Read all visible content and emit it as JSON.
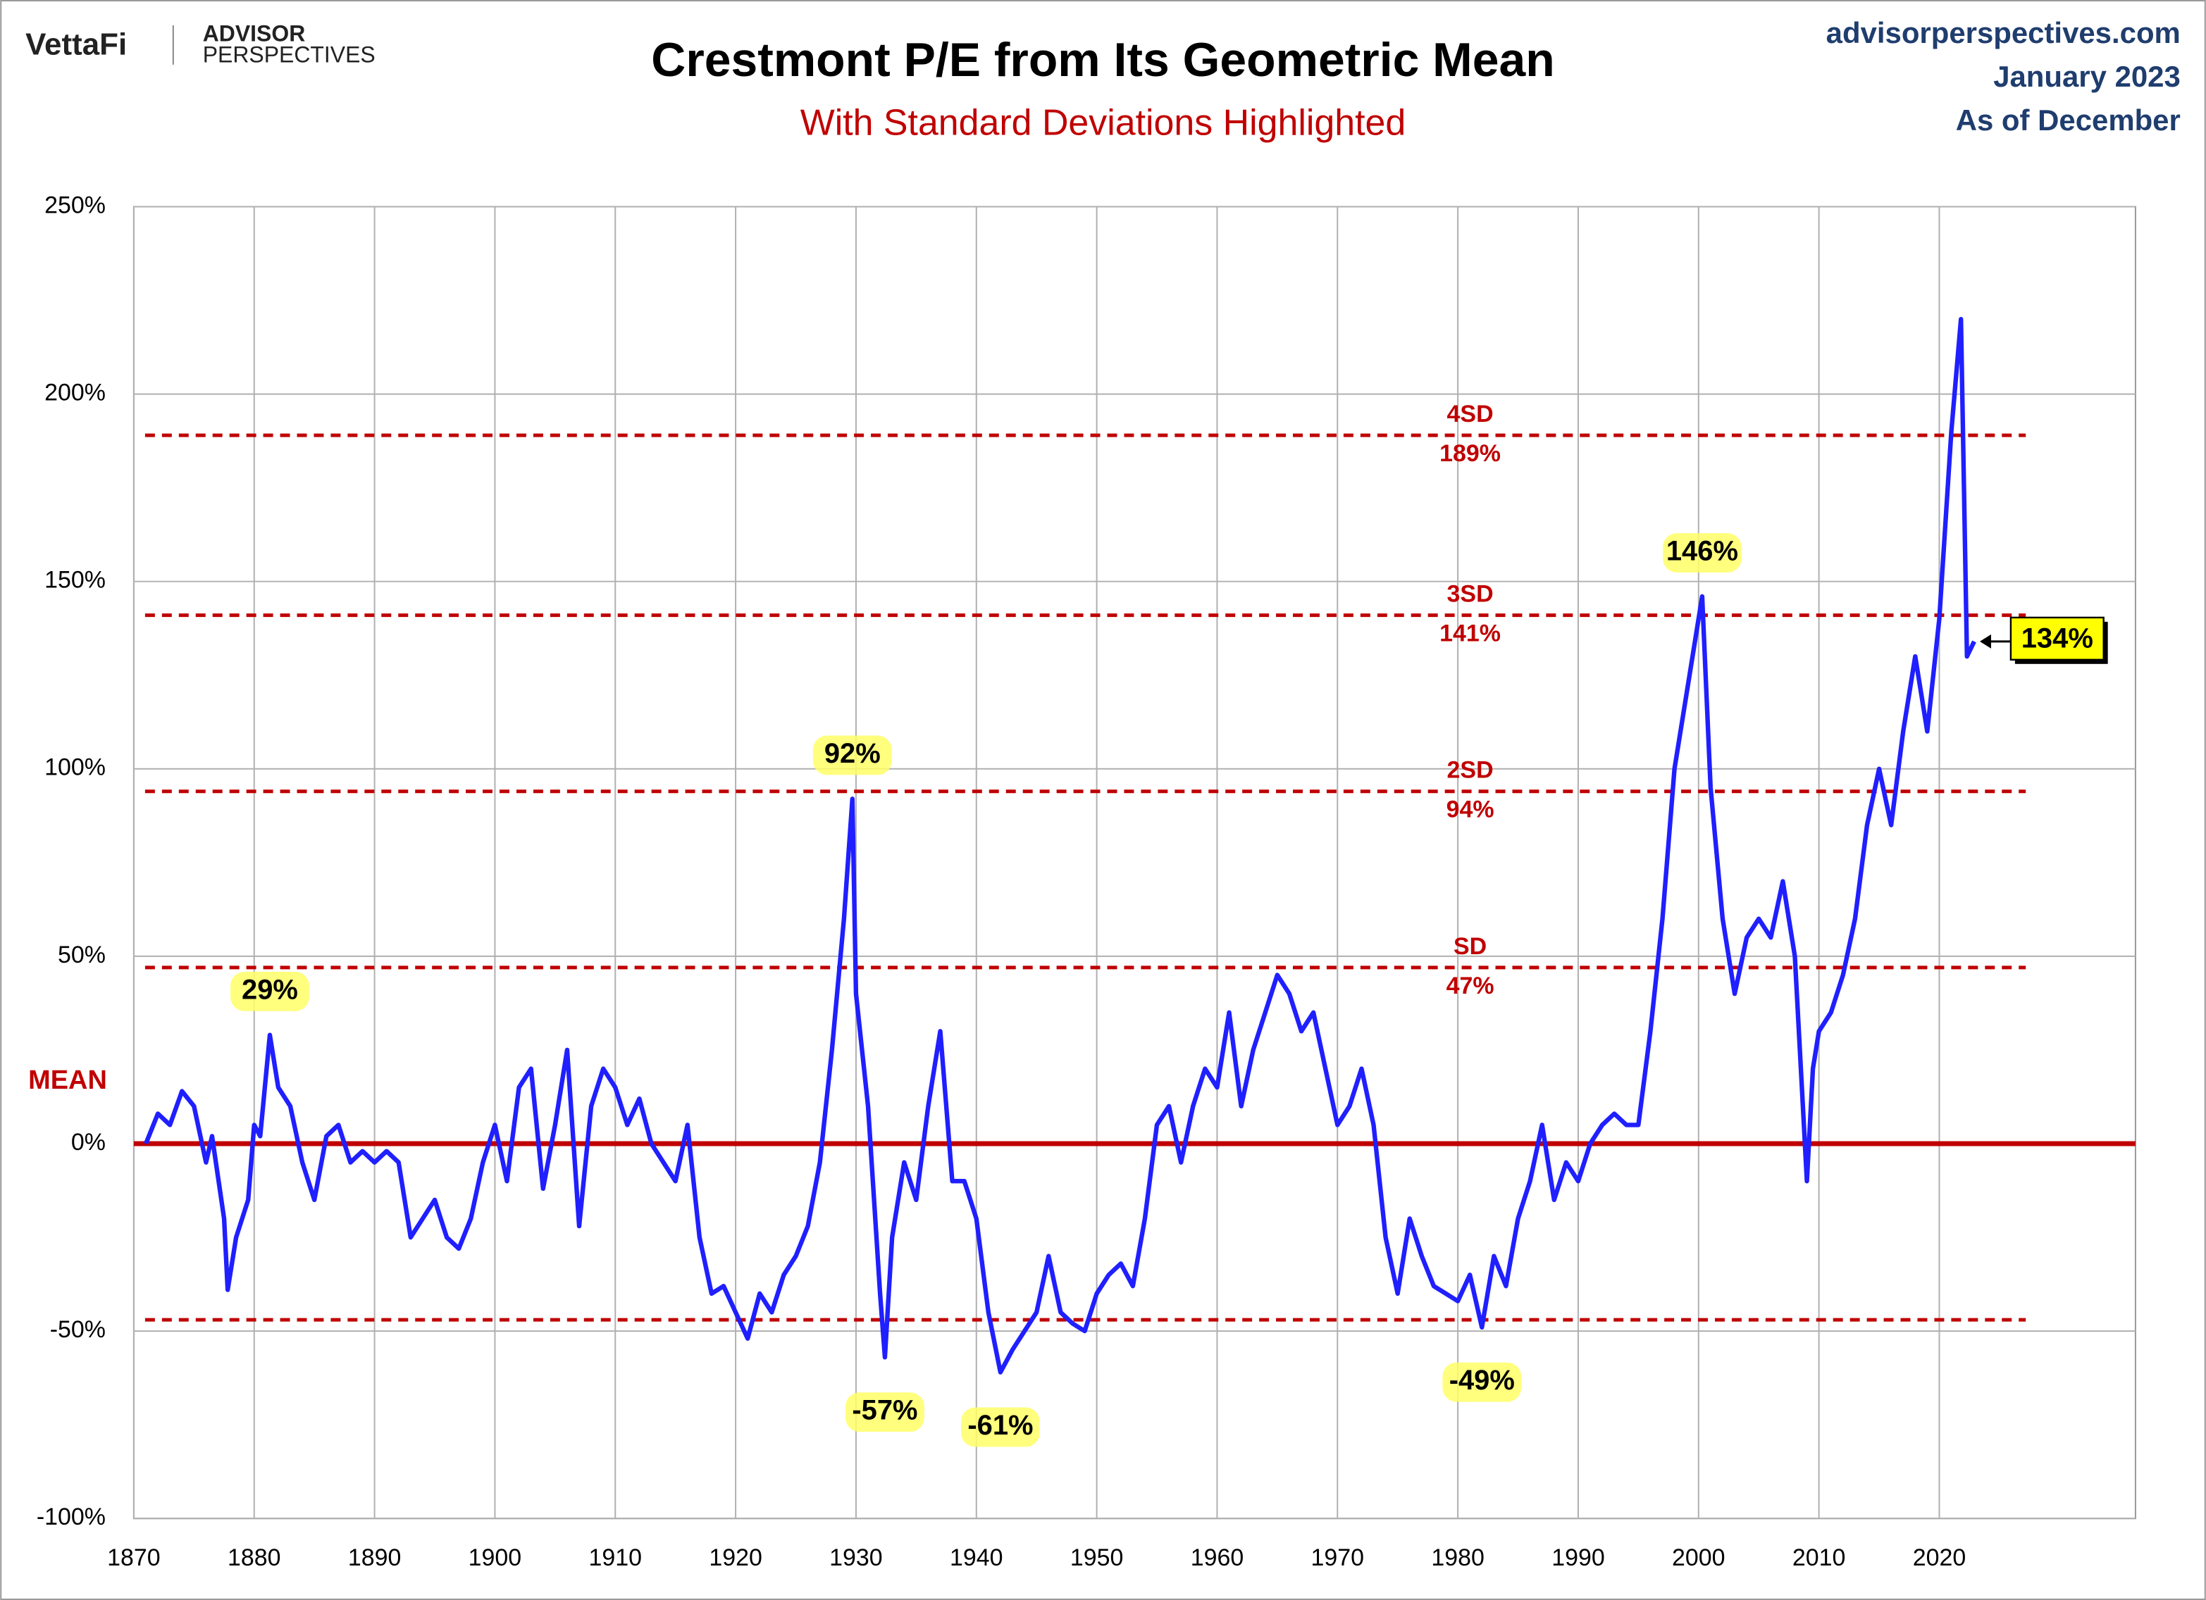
{
  "header": {
    "logo": "VettaFi",
    "brand_top": "ADVISOR",
    "brand_bottom": "PERSPECTIVES",
    "source": "advisorperspectives.com",
    "date": "January 2023",
    "as_of": "As of December"
  },
  "chart_data": {
    "type": "line",
    "title": "Crestmont P/E from Its Geometric Mean",
    "subtitle": "With Standard Deviations Highlighted",
    "x": [
      1871,
      1872,
      1873,
      1874,
      1875,
      1876,
      1876.5,
      1877.5,
      1877.8,
      1878.5,
      1879.5,
      1880,
      1880.5,
      1881.3,
      1882,
      1883,
      1884,
      1885,
      1886,
      1887,
      1888,
      1889,
      1890,
      1891,
      1892,
      1893,
      1894,
      1895,
      1896,
      1897,
      1898,
      1899,
      1900,
      1901,
      1902,
      1903,
      1904,
      1905,
      1906,
      1907,
      1908,
      1909,
      1910,
      1911,
      1912,
      1913,
      1914,
      1915,
      1916,
      1917,
      1918,
      1919,
      1920,
      1921,
      1922,
      1923,
      1924,
      1925,
      1926,
      1927,
      1928,
      1929,
      1929.7,
      1930,
      1931,
      1932,
      1932.4,
      1933,
      1934,
      1935,
      1936,
      1937,
      1938,
      1939,
      1940,
      1941,
      1942,
      1943,
      1944,
      1945,
      1946,
      1947,
      1948,
      1949,
      1950,
      1951,
      1952,
      1953,
      1954,
      1955,
      1956,
      1957,
      1958,
      1959,
      1960,
      1961,
      1962,
      1963,
      1964,
      1965,
      1966,
      1967,
      1968,
      1969,
      1970,
      1971,
      1972,
      1973,
      1974,
      1975,
      1976,
      1977,
      1978,
      1979,
      1980,
      1981,
      1982,
      1983,
      1984,
      1985,
      1986,
      1987,
      1988,
      1989,
      1990,
      1991,
      1992,
      1993,
      1994,
      1995,
      1996,
      1997,
      1998,
      1999,
      2000.3,
      2001,
      2002,
      2003,
      2004,
      2005,
      2006,
      2007,
      2008,
      2009,
      2009.5,
      2010,
      2011,
      2012,
      2013,
      2014,
      2015,
      2016,
      2017,
      2018,
      2019,
      2020,
      2021,
      2021.8,
      2022.3,
      2022.9
    ],
    "series": [
      {
        "name": "Crestmont P/E",
        "color": "#1f1fff",
        "values": [
          0,
          8,
          5,
          14,
          10,
          -5,
          2,
          -20,
          -39,
          -25,
          -15,
          5,
          2,
          29,
          15,
          10,
          -5,
          -15,
          2,
          5,
          -5,
          -2,
          -5,
          -2,
          -5,
          -25,
          -20,
          -15,
          -25,
          -28,
          -20,
          -5,
          5,
          -10,
          15,
          20,
          -12,
          5,
          25,
          -22,
          10,
          20,
          15,
          5,
          12,
          0,
          -5,
          -10,
          5,
          -25,
          -40,
          -38,
          -45,
          -52,
          -40,
          -45,
          -35,
          -30,
          -22,
          -5,
          25,
          60,
          92,
          40,
          10,
          -40,
          -57,
          -25,
          -5,
          -15,
          10,
          30,
          -10,
          -10,
          -20,
          -45,
          -61,
          -55,
          -50,
          -45,
          -30,
          -45,
          -48,
          -50,
          -40,
          -35,
          -32,
          -38,
          -20,
          5,
          10,
          -5,
          10,
          20,
          15,
          35,
          10,
          25,
          35,
          45,
          40,
          30,
          35,
          20,
          5,
          10,
          20,
          5,
          -25,
          -40,
          -20,
          -30,
          -38,
          -40,
          -42,
          -35,
          -49,
          -30,
          -38,
          -20,
          -10,
          5,
          -15,
          -5,
          -10,
          0,
          5,
          8,
          5,
          5,
          30,
          60,
          100,
          120,
          146,
          95,
          60,
          40,
          55,
          60,
          55,
          70,
          50,
          -10,
          20,
          30,
          35,
          45,
          60,
          85,
          100,
          85,
          110,
          130,
          110,
          140,
          190,
          220,
          130,
          134
        ]
      }
    ],
    "xlim": [
      1870,
      2036.3
    ],
    "xticks": [
      1870,
      1880,
      1890,
      1900,
      1910,
      1920,
      1930,
      1940,
      1950,
      1960,
      1970,
      1980,
      1990,
      2000,
      2010,
      2020
    ],
    "ylim": [
      -100,
      250
    ],
    "yticks": [
      {
        "value": -100,
        "label": "-100%"
      },
      {
        "value": -50,
        "label": "-50%"
      },
      {
        "value": 0,
        "label": "0%"
      },
      {
        "value": 50,
        "label": "50%"
      },
      {
        "value": 100,
        "label": "100%"
      },
      {
        "value": 150,
        "label": "150%"
      },
      {
        "value": 200,
        "label": "200%"
      },
      {
        "value": 250,
        "label": "250%"
      }
    ],
    "grid": true,
    "mean_line": {
      "value": 0,
      "label": "MEAN",
      "color": "#c00000"
    },
    "reference_lines": [
      {
        "value": 189,
        "name": "4SD",
        "label": "189%"
      },
      {
        "value": 141,
        "name": "3SD",
        "label": "141%"
      },
      {
        "value": 94,
        "name": "2SD",
        "label": "94%"
      },
      {
        "value": 47,
        "name": "SD",
        "label": "47%"
      },
      {
        "value": -47
      }
    ],
    "reference_color": "#c00000",
    "annotations": [
      {
        "x": 1881.3,
        "y": 29,
        "label": "29%"
      },
      {
        "x": 1929.7,
        "y": 92,
        "label": "92%"
      },
      {
        "x": 1932.4,
        "y": -57,
        "label": "-57%"
      },
      {
        "x": 1942,
        "y": -61,
        "label": "-61%"
      },
      {
        "x": 1982,
        "y": -49,
        "label": "-49%"
      },
      {
        "x": 2000.3,
        "y": 146,
        "label": "146%"
      },
      {
        "x": 2022.9,
        "y": 134,
        "label": "134%"
      }
    ]
  }
}
